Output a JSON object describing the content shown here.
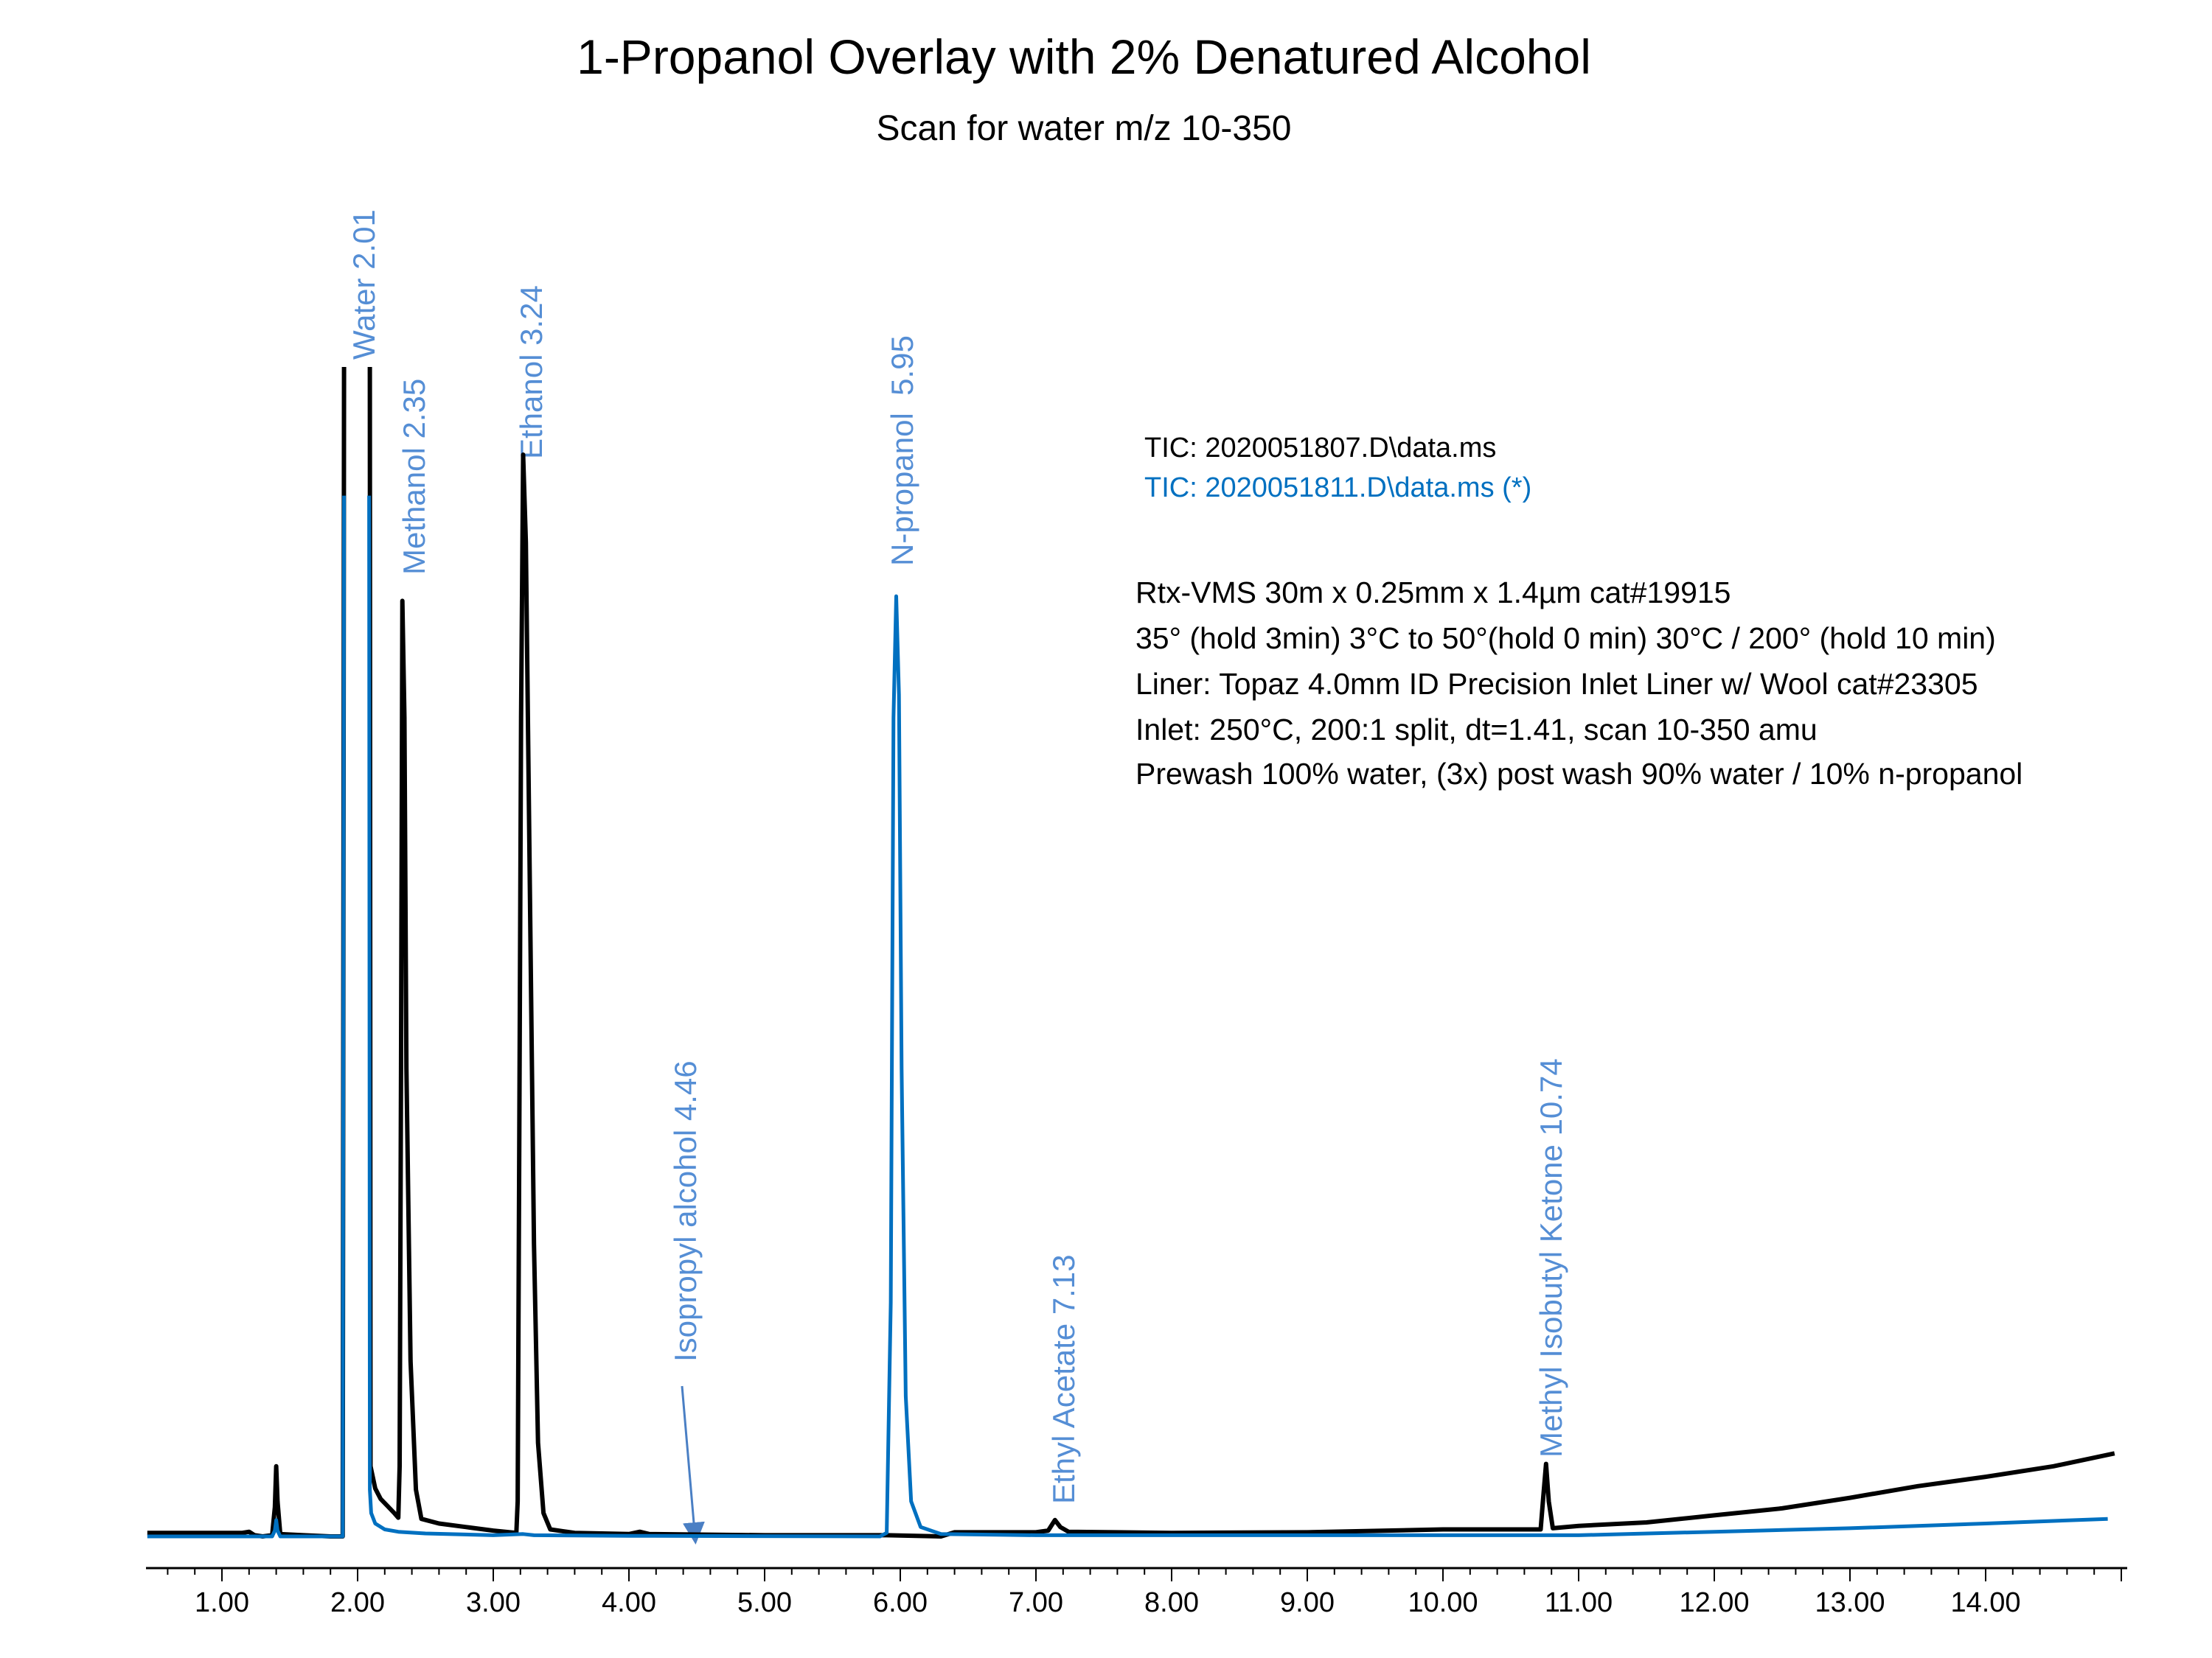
{
  "chart_data": {
    "type": "line",
    "title": "1-Propanol Overlay with 2% Denatured Alcohol",
    "subtitle": "Scan for water m/z 10-350",
    "xlabel": "",
    "ylabel": "",
    "xlim": [
      0.45,
      15.0
    ],
    "ylim": [
      0,
      100
    ],
    "x_ticks": [
      "1.00",
      "2.00",
      "3.00",
      "4.00",
      "5.00",
      "6.00",
      "7.00",
      "8.00",
      "9.00",
      "10.00",
      "11.00",
      "12.00",
      "13.00",
      "14.00"
    ],
    "y_axis_shown": false,
    "grid": false,
    "legend_placement": "top-right",
    "legend": [
      {
        "label": "TIC: 2020051807.D\\data.ms",
        "color": "#000000"
      },
      {
        "label": "TIC: 2020051811.D\\data.ms (*)",
        "color": "#0070C0"
      }
    ],
    "series": [
      {
        "name": "TIC: 2020051807.D\\data.ms",
        "color": "#000000",
        "x": [
          0.45,
          0.9,
          1.15,
          1.2,
          1.24,
          1.3,
          1.37,
          1.39,
          1.4,
          1.41,
          1.43,
          1.6,
          1.8,
          1.89,
          1.9,
          null,
          2.09,
          2.095,
          2.13,
          2.17,
          2.22,
          2.27,
          2.3,
          2.31,
          2.32,
          2.33,
          2.345,
          2.36,
          2.39,
          2.43,
          2.47,
          2.6,
          2.8,
          3.0,
          3.17,
          3.18,
          3.19,
          3.205,
          3.22,
          3.24,
          3.27,
          3.3,
          3.33,
          3.37,
          3.42,
          3.6,
          4.0,
          4.08,
          4.15,
          5.0,
          5.9,
          6.3,
          6.4,
          7.0,
          7.09,
          7.14,
          7.18,
          7.24,
          8.0,
          9.0,
          10.0,
          10.72,
          10.74,
          10.76,
          10.78,
          10.81,
          11.0,
          11.5,
          12.0,
          12.5,
          13.0,
          13.5,
          14.0,
          14.5,
          14.95
        ],
        "y": [
          0.3,
          0.3,
          0.3,
          0.4,
          0.1,
          0.0,
          0.1,
          2.5,
          6.0,
          3.0,
          0.2,
          0.1,
          0.0,
          0.0,
          100,
          null,
          100,
          6.0,
          4.1,
          3.2,
          2.6,
          2.0,
          1.6,
          6,
          40,
          80,
          70,
          40,
          15,
          4,
          1.5,
          1.1,
          0.8,
          0.5,
          0.3,
          3,
          30,
          70,
          92.5,
          85,
          55,
          25,
          8,
          2,
          0.6,
          0.3,
          0.2,
          0.4,
          0.2,
          0.1,
          0.1,
          0.0,
          0.35,
          0.35,
          0.5,
          1.4,
          0.8,
          0.4,
          0.3,
          0.35,
          0.6,
          0.6,
          3.5,
          6.2,
          3.0,
          0.7,
          0.9,
          1.2,
          1.8,
          2.4,
          3.3,
          4.3,
          5.1,
          6.0,
          7.1
        ]
      },
      {
        "name": "TIC: 2020051811.D\\data.ms (*)",
        "color": "#0070C0",
        "x": [
          0.45,
          1.37,
          1.39,
          1.4,
          1.41,
          1.43,
          1.89,
          1.9,
          null,
          2.085,
          2.09,
          2.1,
          2.13,
          2.2,
          2.3,
          2.5,
          3.0,
          3.22,
          3.3,
          4.0,
          5.85,
          5.9,
          5.93,
          5.95,
          5.97,
          5.99,
          6.01,
          6.04,
          6.08,
          6.15,
          6.3,
          7.0,
          9.0,
          11.0,
          12.0,
          13.0,
          14.0,
          14.9
        ],
        "y": [
          0.0,
          0.0,
          0.5,
          1.4,
          0.5,
          0.0,
          0.0,
          89,
          null,
          89,
          4.0,
          2.0,
          1.1,
          0.6,
          0.4,
          0.25,
          0.1,
          0.2,
          0.1,
          0.05,
          0.0,
          0.3,
          20,
          70,
          80.4,
          72,
          40,
          12,
          3,
          0.8,
          0.2,
          0.1,
          0.1,
          0.1,
          0.4,
          0.7,
          1.1,
          1.5
        ]
      }
    ],
    "annotations": [
      {
        "text": "Water 2.01",
        "rt": 2.01
      },
      {
        "text": "Methanol 2.35",
        "rt": 2.35
      },
      {
        "text": "Ethanol 3.24",
        "rt": 3.24
      },
      {
        "text": "N-propanol  5.95",
        "rt": 5.95
      },
      {
        "text": "Isopropyl alcohol 4.46",
        "rt": 4.46,
        "arrow": true
      },
      {
        "text": "Ethyl Acetate 7.13",
        "rt": 7.13
      },
      {
        "text": "Methyl Isobutyl Ketone 10.74",
        "rt": 10.74
      }
    ],
    "annotation_color": "#558ED5",
    "method_notes": [
      "Rtx-VMS 30m x 0.25mm x 1.4µm cat#19915",
      "35° (hold 3min) 3°C to 50°(hold 0 min) 30°C / 200° (hold 10 min)",
      "Liner: Topaz 4.0mm ID Precision Inlet Liner w/ Wool cat#23305",
      "Inlet: 250°C, 200:1 split, dt=1.41, scan 10-350 amu",
      "Prewash 100% water, (3x) post wash 90% water / 10% n-propanol"
    ]
  }
}
